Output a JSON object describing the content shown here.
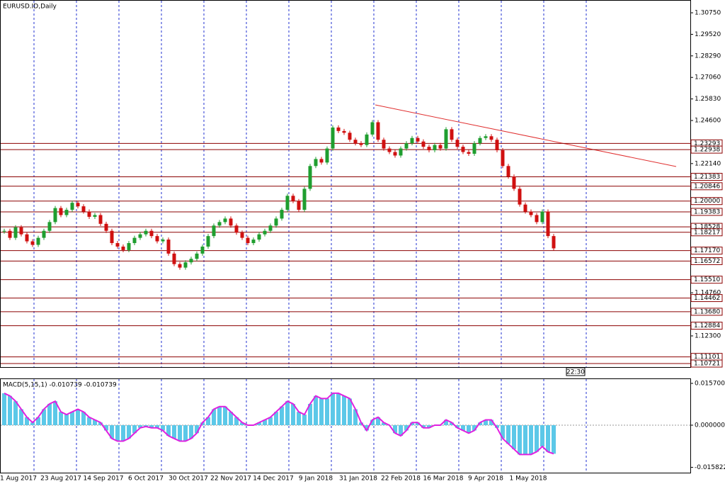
{
  "chart_data": [
    {
      "type": "candlestick",
      "title": "EURUSD.ID,Daily",
      "closes": [
        1.183,
        1.179,
        1.185,
        1.181,
        1.177,
        1.175,
        1.179,
        1.183,
        1.188,
        1.196,
        1.192,
        1.195,
        1.199,
        1.197,
        1.194,
        1.191,
        1.192,
        1.187,
        1.183,
        1.176,
        1.174,
        1.172,
        1.176,
        1.179,
        1.181,
        1.183,
        1.18,
        1.177,
        1.178,
        1.17,
        1.164,
        1.162,
        1.165,
        1.167,
        1.17,
        1.174,
        1.18,
        1.186,
        1.188,
        1.19,
        1.186,
        1.182,
        1.179,
        1.176,
        1.178,
        1.181,
        1.183,
        1.186,
        1.19,
        1.195,
        1.203,
        1.2,
        1.195,
        1.207,
        1.22,
        1.224,
        1.222,
        1.23,
        1.242,
        1.24,
        1.239,
        1.235,
        1.233,
        1.232,
        1.238,
        1.245,
        1.235,
        1.23,
        1.228,
        1.226,
        1.23,
        1.233,
        1.236,
        1.234,
        1.231,
        1.229,
        1.232,
        1.23,
        1.241,
        1.235,
        1.231,
        1.228,
        1.227,
        1.233,
        1.236,
        1.237,
        1.235,
        1.229,
        1.22,
        1.214,
        1.207,
        1.198,
        1.194,
        1.192,
        1.188,
        1.194,
        1.18,
        1.173
      ],
      "ylim": [
        1.1052,
        1.3148
      ],
      "yticks": [
        {
          "value": 1.3075,
          "label": "1.30750"
        },
        {
          "value": 1.2952,
          "label": "1.29520"
        },
        {
          "value": 1.2829,
          "label": "1.28290"
        },
        {
          "value": 1.2706,
          "label": "1.27060"
        },
        {
          "value": 1.2583,
          "label": "1.25830"
        },
        {
          "value": 1.246,
          "label": "1.24600"
        },
        {
          "value": 1.2214,
          "label": "1.22140"
        },
        {
          "value": 1.1476,
          "label": "1.14760"
        },
        {
          "value": 1.123,
          "label": "1.12300"
        }
      ],
      "levels": [
        {
          "value": 1.23293,
          "label": "1.23293"
        },
        {
          "value": 1.22938,
          "label": "1.22938"
        },
        {
          "value": 1.21383,
          "label": "1.21383"
        },
        {
          "value": 1.20846,
          "label": "1.20846"
        },
        {
          "value": 1.2,
          "label": "1.20000"
        },
        {
          "value": 1.19383,
          "label": "1.19383"
        },
        {
          "value": 1.18528,
          "label": "1.18528"
        },
        {
          "value": 1.18217,
          "label": "1.18217"
        },
        {
          "value": 1.1717,
          "label": "1.17170"
        },
        {
          "value": 1.16572,
          "label": "1.16572"
        },
        {
          "value": 1.1551,
          "label": "1.15510"
        },
        {
          "value": 1.14462,
          "label": "1.14462"
        },
        {
          "value": 1.1368,
          "label": "1.13680"
        },
        {
          "value": 1.12884,
          "label": "1.12884"
        },
        {
          "value": 1.11101,
          "label": "1.11101"
        },
        {
          "value": 1.10721,
          "label": "1.10721"
        }
      ],
      "colors": {
        "up": "#1f9e2f",
        "down": "#d01010",
        "level": "#8b0000"
      },
      "dates": [
        "1 Aug 2017",
        "23 Aug 2017",
        "14 Sep 2017",
        "6 Oct 2017",
        "30 Oct 2017",
        "22 Nov 2017",
        "14 Dec 2017",
        "9 Jan 2018",
        "31 Jan 2018",
        "22 Feb 2018",
        "16 Mar 2018",
        "9 Apr 2018",
        "1 May 2018"
      ],
      "time_label": "22:30"
    },
    {
      "type": "histogram",
      "title": "MACD(5,15,1) -0.010739 -0.010739",
      "values": [
        0.012,
        0.011,
        0.009,
        0.006,
        0.003,
        0.001,
        0.003,
        0.006,
        0.008,
        0.009,
        0.005,
        0.004,
        0.005,
        0.006,
        0.005,
        0.003,
        0.002,
        0.001,
        -0.002,
        -0.005,
        -0.006,
        -0.006,
        -0.005,
        -0.003,
        -0.001,
        -0.0005,
        -0.001,
        -0.001,
        -0.002,
        -0.004,
        -0.005,
        -0.006,
        -0.006,
        -0.005,
        -0.003,
        0.001,
        0.003,
        0.006,
        0.007,
        0.007,
        0.005,
        0.003,
        0.001,
        0,
        0,
        0.001,
        0.002,
        0.003,
        0.005,
        0.007,
        0.009,
        0.008,
        0.005,
        0.004,
        0.008,
        0.011,
        0.01,
        0.01,
        0.012,
        0.012,
        0.011,
        0.01,
        0.006,
        0.001,
        -0.002,
        0.002,
        0.003,
        0.001,
        0,
        -0.003,
        -0.004,
        -0.002,
        0.001,
        0.001,
        -0.001,
        -0.001,
        0,
        0,
        0.002,
        0.001,
        -0.001,
        -0.002,
        -0.003,
        -0.002,
        0.001,
        0.002,
        0.002,
        -0.001,
        -0.005,
        -0.007,
        -0.009,
        -0.011,
        -0.011,
        -0.011,
        -0.01,
        -0.008,
        -0.01,
        -0.010739
      ],
      "ylim": [
        -0.0181,
        0.0173
      ],
      "yticks": [
        {
          "value": 0.0157,
          "label": "0.015700"
        },
        {
          "value": 0,
          "label": "0.000000"
        },
        {
          "value": -0.015822,
          "label": "-0.015822"
        }
      ],
      "color": "#5cc8e8",
      "line_color": "#e020e0"
    }
  ]
}
